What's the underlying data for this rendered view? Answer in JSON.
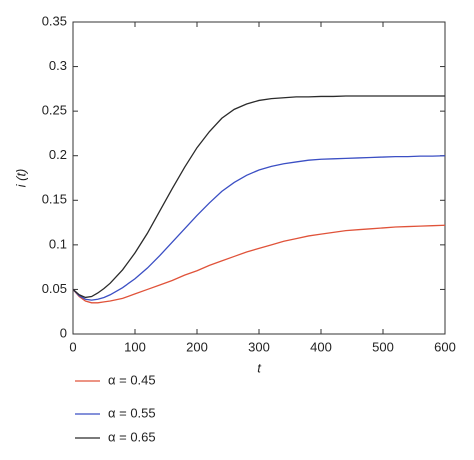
{
  "chart_data": {
    "type": "line",
    "xlabel": "t",
    "ylabel": "i (t)",
    "x": [
      0,
      10,
      20,
      30,
      40,
      50,
      60,
      80,
      100,
      120,
      140,
      160,
      180,
      200,
      220,
      240,
      260,
      280,
      300,
      320,
      340,
      360,
      380,
      400,
      420,
      440,
      460,
      480,
      500,
      520,
      540,
      560,
      580,
      600
    ],
    "series": [
      {
        "name": "α = 0.45",
        "color": "#e0533a",
        "values": [
          0.05,
          0.042,
          0.037,
          0.035,
          0.035,
          0.036,
          0.037,
          0.04,
          0.045,
          0.05,
          0.055,
          0.06,
          0.066,
          0.071,
          0.077,
          0.082,
          0.087,
          0.092,
          0.096,
          0.1,
          0.104,
          0.107,
          0.11,
          0.112,
          0.114,
          0.116,
          0.117,
          0.118,
          0.119,
          0.12,
          0.1205,
          0.121,
          0.1215,
          0.122
        ]
      },
      {
        "name": "α = 0.55",
        "color": "#3b4fc4",
        "values": [
          0.05,
          0.043,
          0.039,
          0.038,
          0.039,
          0.041,
          0.044,
          0.052,
          0.062,
          0.074,
          0.088,
          0.103,
          0.118,
          0.133,
          0.147,
          0.16,
          0.17,
          0.178,
          0.184,
          0.188,
          0.191,
          0.193,
          0.195,
          0.196,
          0.1965,
          0.197,
          0.1975,
          0.198,
          0.1985,
          0.199,
          0.199,
          0.1995,
          0.1995,
          0.2
        ]
      },
      {
        "name": "α = 0.65",
        "color": "#2b2b2b",
        "values": [
          0.05,
          0.044,
          0.041,
          0.042,
          0.046,
          0.051,
          0.057,
          0.072,
          0.091,
          0.113,
          0.138,
          0.163,
          0.187,
          0.209,
          0.227,
          0.242,
          0.252,
          0.258,
          0.262,
          0.264,
          0.265,
          0.266,
          0.266,
          0.2665,
          0.2665,
          0.267,
          0.267,
          0.267,
          0.267,
          0.267,
          0.267,
          0.267,
          0.267,
          0.267
        ]
      }
    ],
    "xlim": [
      0,
      600
    ],
    "xticks": [
      0,
      100,
      200,
      300,
      400,
      500,
      600
    ],
    "ylim": [
      0,
      0.35
    ],
    "yticks": [
      0,
      0.05,
      0.1,
      0.15,
      0.2,
      0.25,
      0.3,
      0.35
    ],
    "grid": false
  }
}
